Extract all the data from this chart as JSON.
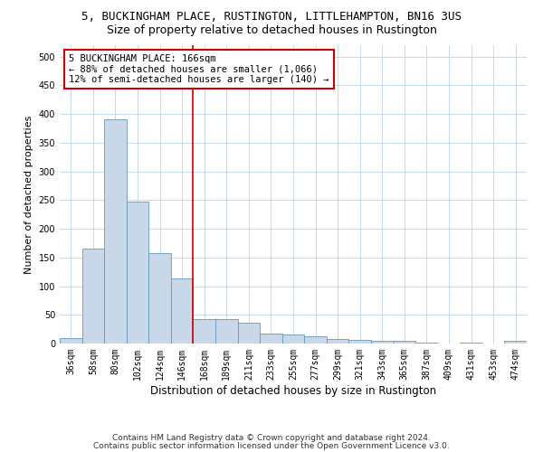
{
  "title": "5, BUCKINGHAM PLACE, RUSTINGTON, LITTLEHAMPTON, BN16 3US",
  "subtitle": "Size of property relative to detached houses in Rustington",
  "xlabel": "Distribution of detached houses by size in Rustington",
  "ylabel": "Number of detached properties",
  "categories": [
    "36sqm",
    "58sqm",
    "80sqm",
    "102sqm",
    "124sqm",
    "146sqm",
    "168sqm",
    "189sqm",
    "211sqm",
    "233sqm",
    "255sqm",
    "277sqm",
    "299sqm",
    "321sqm",
    "343sqm",
    "365sqm",
    "387sqm",
    "409sqm",
    "431sqm",
    "453sqm",
    "474sqm"
  ],
  "values": [
    10,
    165,
    390,
    247,
    157,
    113,
    42,
    42,
    37,
    17,
    15,
    13,
    8,
    7,
    5,
    4,
    2,
    0,
    2,
    0,
    5
  ],
  "bar_color": "#c8d8e8",
  "bar_edge_color": "#6699bb",
  "vline_index": 6,
  "vline_color": "#cc0000",
  "annotation_line1": "5 BUCKINGHAM PLACE: 166sqm",
  "annotation_line2": "← 88% of detached houses are smaller (1,066)",
  "annotation_line3": "12% of semi-detached houses are larger (140) →",
  "annotation_box_color": "#ffffff",
  "annotation_box_edge": "#cc0000",
  "ylim": [
    0,
    520
  ],
  "yticks": [
    0,
    50,
    100,
    150,
    200,
    250,
    300,
    350,
    400,
    450,
    500
  ],
  "footer1": "Contains HM Land Registry data © Crown copyright and database right 2024.",
  "footer2": "Contains public sector information licensed under the Open Government Licence v3.0.",
  "bg_color": "#ffffff",
  "grid_color": "#c8d8e8",
  "title_fontsize": 9,
  "subtitle_fontsize": 9,
  "axis_label_fontsize": 8,
  "tick_fontsize": 7,
  "annotation_fontsize": 7.5,
  "footer_fontsize": 6.5
}
